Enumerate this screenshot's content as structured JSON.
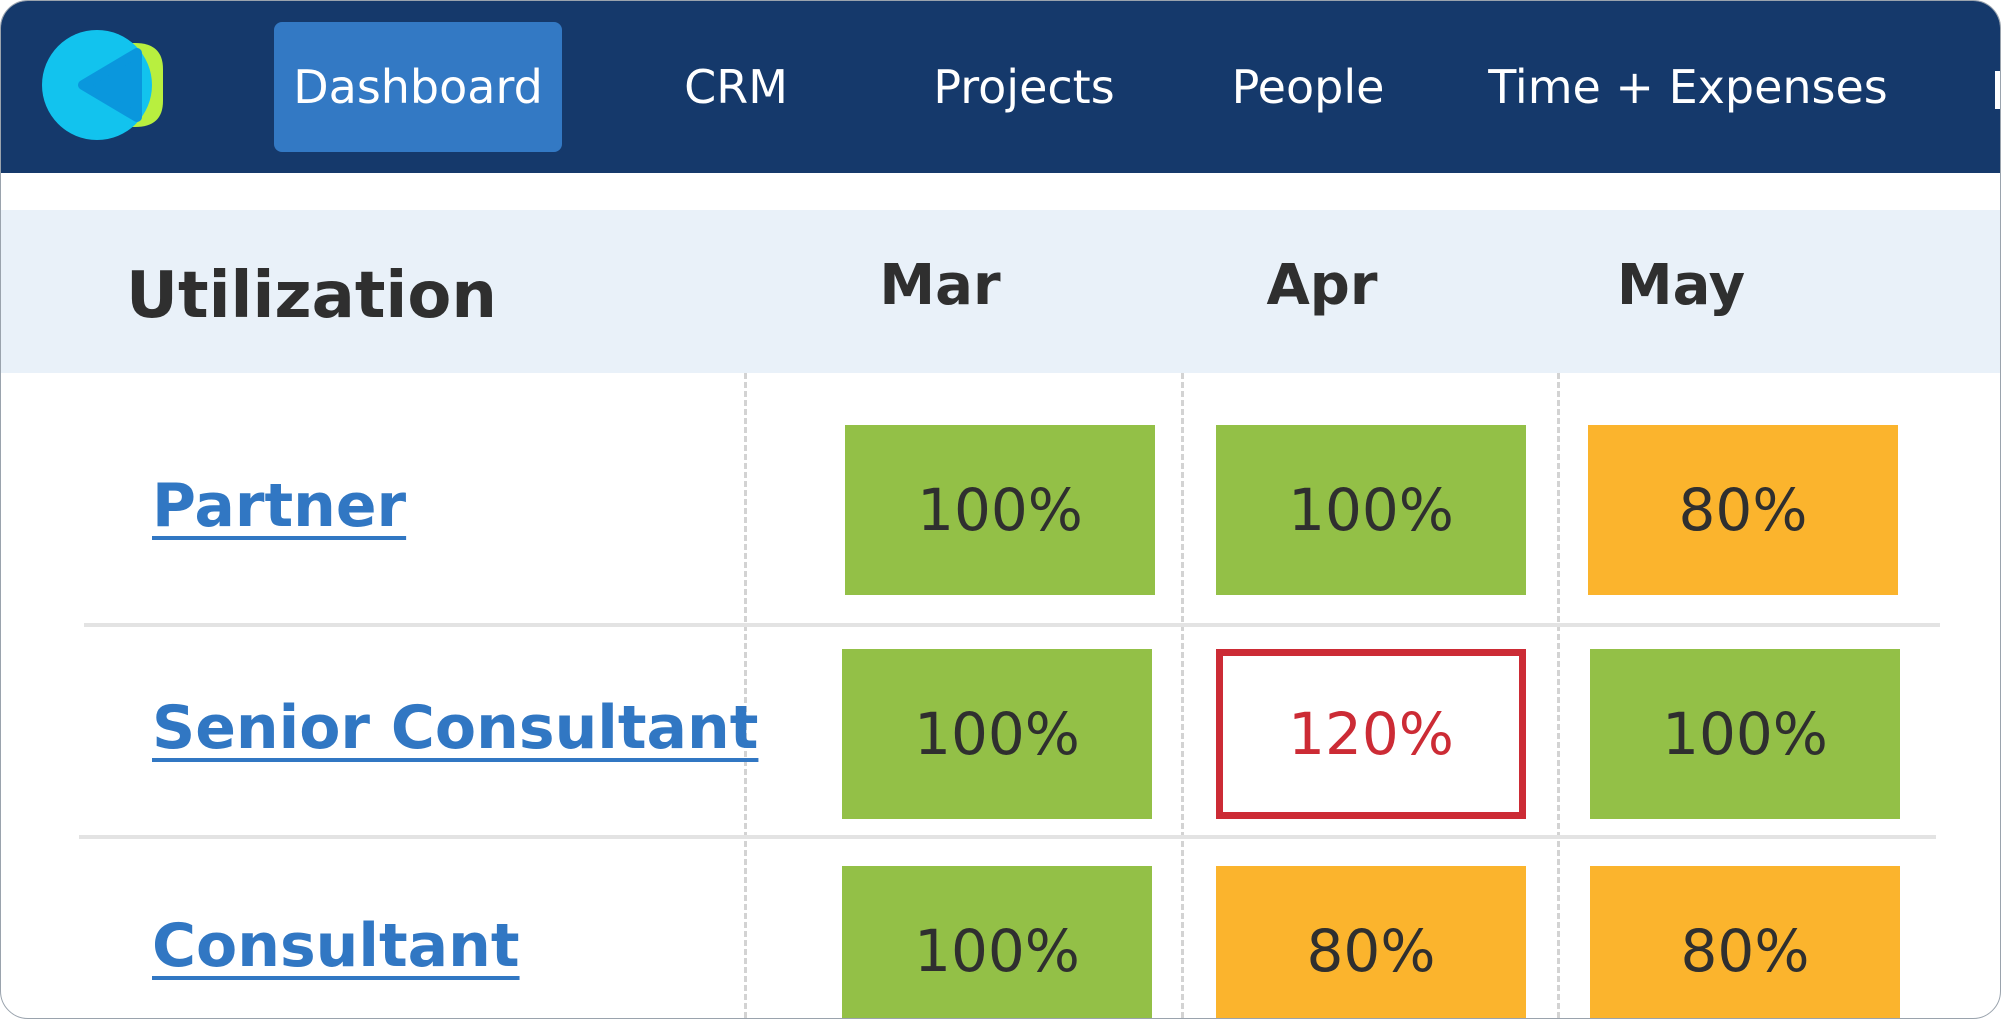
{
  "nav": {
    "items": [
      {
        "label": "Dashboard",
        "active": true
      },
      {
        "label": "CRM",
        "active": false
      },
      {
        "label": "Projects",
        "active": false
      },
      {
        "label": "People",
        "active": false
      },
      {
        "label": "Time + Expenses",
        "active": false
      }
    ]
  },
  "utilization": {
    "title": "Utilization",
    "months": [
      "Mar",
      "Apr",
      "May"
    ],
    "rows": [
      {
        "role": "Partner",
        "values": [
          "100%",
          "100%",
          "80%"
        ],
        "status": [
          "ok",
          "ok",
          "under"
        ]
      },
      {
        "role": "Senior Consultant",
        "values": [
          "100%",
          "120%",
          "100%"
        ],
        "status": [
          "ok",
          "over",
          "ok"
        ]
      },
      {
        "role": "Consultant",
        "values": [
          "100%",
          "80%",
          "80%"
        ],
        "status": [
          "ok",
          "under",
          "under"
        ]
      }
    ]
  },
  "colors": {
    "nav_bg": "#15396b",
    "active_tab": "#3379c4",
    "ok": "#93c047",
    "under": "#fbb42d",
    "over": "#cc2b35",
    "link": "#3177c3"
  }
}
